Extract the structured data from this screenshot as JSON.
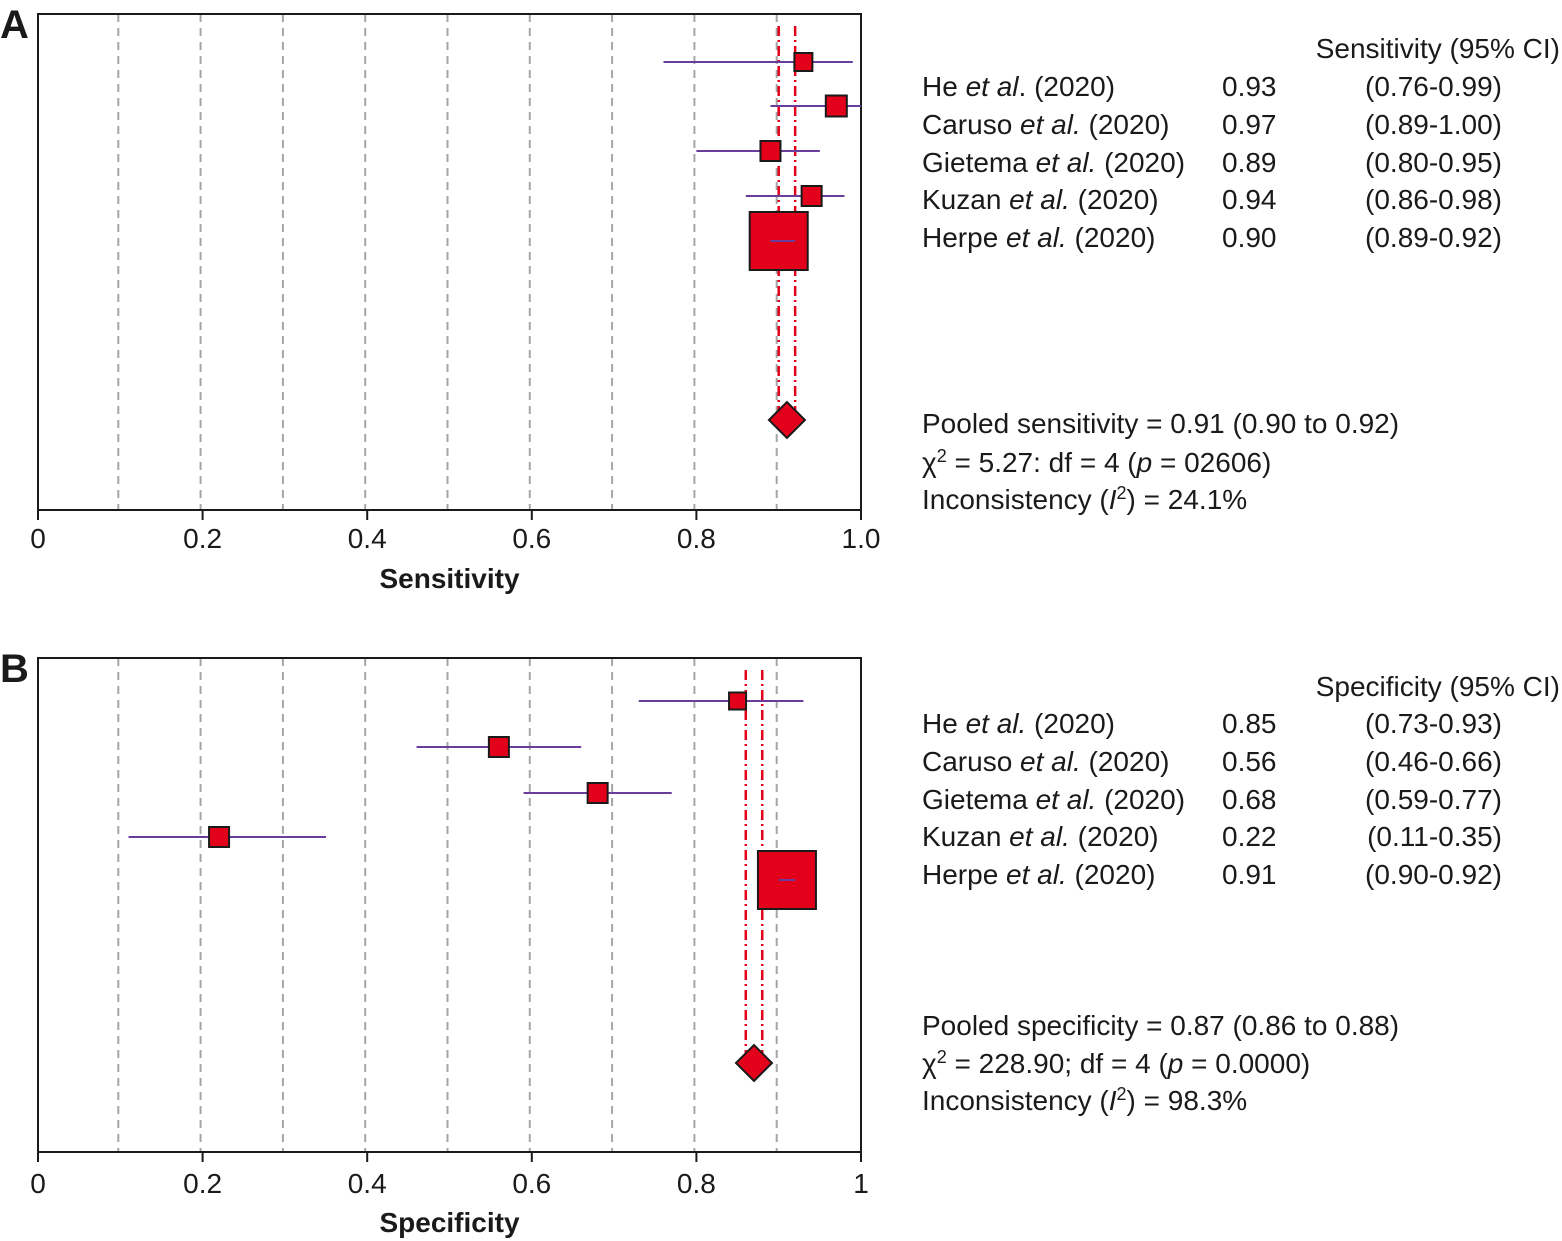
{
  "chart_data": [
    {
      "type": "forest",
      "panel": "A",
      "xlabel": "Sensitivity",
      "xlim": [
        0,
        1
      ],
      "xticks": [
        "0",
        "0.2",
        "0.4",
        "0.6",
        "0.8",
        "1.0"
      ],
      "header": "Sensitivity (95% CI)",
      "studies": [
        {
          "name": "He",
          "etal": "et al",
          "suffix": ". (2020)",
          "est": 0.93,
          "lo": 0.76,
          "hi": 0.99,
          "est_text": "0.93",
          "ci_text": "(0.76-0.99)",
          "weight": 0.8
        },
        {
          "name": "Caruso",
          "etal": "et al.",
          "suffix": " (2020)",
          "est": 0.97,
          "lo": 0.89,
          "hi": 1.0,
          "est_text": "0.97",
          "ci_text": "(0.89-1.00)",
          "weight": 0.95
        },
        {
          "name": "Gietema",
          "etal": "et al.",
          "suffix": " (2020)",
          "est": 0.89,
          "lo": 0.8,
          "hi": 0.95,
          "est_text": "0.89",
          "ci_text": "(0.80-0.95)",
          "weight": 0.9
        },
        {
          "name": "Kuzan",
          "etal": "et al.",
          "suffix": " (2020)",
          "est": 0.94,
          "lo": 0.86,
          "hi": 0.98,
          "est_text": "0.94",
          "ci_text": "(0.86-0.98)",
          "weight": 0.9
        },
        {
          "name": "Herpe",
          "etal": "et al.",
          "suffix": " (2020)",
          "est": 0.9,
          "lo": 0.89,
          "hi": 0.92,
          "est_text": "0.90",
          "ci_text": "(0.89-0.92)",
          "weight": 2.8
        }
      ],
      "pooled": {
        "est": 0.91,
        "lo": 0.9,
        "hi": 0.92
      },
      "summary_lines": [
        {
          "parts": [
            {
              "t": "Pooled sensitivity = 0.91 (0.90 to 0.92)"
            }
          ]
        },
        {
          "parts": [
            {
              "t": "χ"
            },
            {
              "t": "2",
              "sup": true
            },
            {
              "t": " = 5.27: df = 4 ("
            },
            {
              "t": "p",
              "i": true
            },
            {
              "t": " = 02606)"
            }
          ]
        },
        {
          "parts": [
            {
              "t": "Inconsistency ("
            },
            {
              "t": "I",
              "i": true
            },
            {
              "t": "2",
              "sup": true
            },
            {
              "t": ") = 24.1%"
            }
          ]
        }
      ]
    },
    {
      "type": "forest",
      "panel": "B",
      "xlabel": "Specificity",
      "xlim": [
        0,
        1
      ],
      "xticks": [
        "0",
        "0.2",
        "0.4",
        "0.6",
        "0.8",
        "1"
      ],
      "header": "Specificity (95% CI)",
      "studies": [
        {
          "name": "He",
          "etal": "et al.",
          "suffix": " (2020)",
          "est": 0.85,
          "lo": 0.73,
          "hi": 0.93,
          "est_text": "0.85",
          "ci_text": "(0.73-0.93)",
          "weight": 0.75
        },
        {
          "name": "Caruso",
          "etal": "et al.",
          "suffix": " (2020)",
          "est": 0.56,
          "lo": 0.46,
          "hi": 0.66,
          "est_text": "0.56",
          "ci_text": "(0.46-0.66)",
          "weight": 0.9
        },
        {
          "name": "Gietema",
          "etal": "et al.",
          "suffix": " (2020)",
          "est": 0.68,
          "lo": 0.59,
          "hi": 0.77,
          "est_text": "0.68",
          "ci_text": "(0.59-0.77)",
          "weight": 0.9
        },
        {
          "name": "Kuzan",
          "etal": "et al.",
          "suffix": " (2020)",
          "est": 0.22,
          "lo": 0.11,
          "hi": 0.35,
          "est_text": "0.22",
          "ci_text": "(0.11-0.35)",
          "weight": 0.9
        },
        {
          "name": "Herpe",
          "etal": "et al.",
          "suffix": " (2020)",
          "est": 0.91,
          "lo": 0.9,
          "hi": 0.92,
          "est_text": "0.91",
          "ci_text": "(0.90-0.92)",
          "weight": 2.8
        }
      ],
      "pooled": {
        "est": 0.87,
        "lo": 0.86,
        "hi": 0.88
      },
      "summary_lines": [
        {
          "parts": [
            {
              "t": "Pooled specificity = 0.87 (0.86 to 0.88)"
            }
          ]
        },
        {
          "parts": [
            {
              "t": "χ"
            },
            {
              "t": "2",
              "sup": true
            },
            {
              "t": "  = 228.90; df = 4 ("
            },
            {
              "t": "p",
              "i": true
            },
            {
              "t": " = 0.0000)"
            }
          ]
        },
        {
          "parts": [
            {
              "t": "Inconsistency ("
            },
            {
              "t": "I",
              "i": true
            },
            {
              "t": "2",
              "sup": true
            },
            {
              "t": ") = 98.3%"
            }
          ]
        }
      ]
    }
  ],
  "colors": {
    "box_fill": "#e2001a",
    "box_stroke": "#1a1a1a",
    "ci_line": "#6a3d9a",
    "pooled_line": "#e2001a",
    "grid": "#a6a6a6",
    "axis": "#1a1a1a"
  }
}
